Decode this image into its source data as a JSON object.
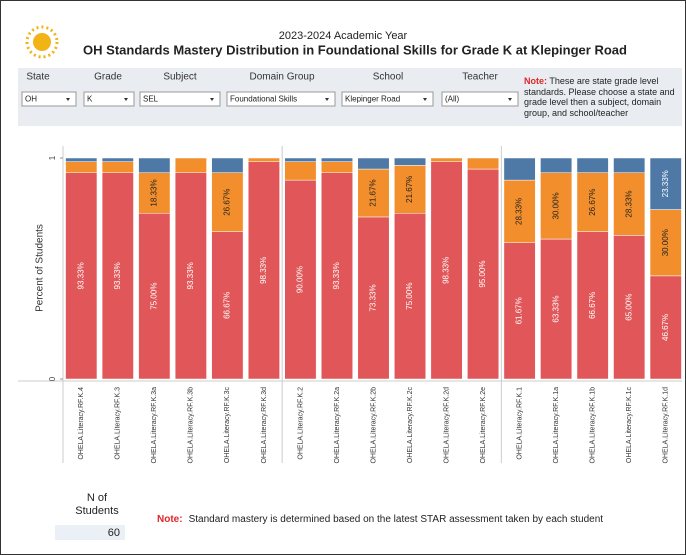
{
  "header": {
    "subtitle": "2023-2024 Academic Year",
    "title": "OH Standards Mastery Distribution in Foundational Skills for Grade K at Klepinger Road"
  },
  "filters": [
    {
      "label": "State",
      "value": "OH"
    },
    {
      "label": "Grade",
      "value": "K"
    },
    {
      "label": "Subject",
      "value": "SEL"
    },
    {
      "label": "Domain Group",
      "value": "Foundational Skills"
    },
    {
      "label": "School",
      "value": "Klepinger Road"
    },
    {
      "label": "Teacher",
      "value": "(All)"
    }
  ],
  "filter_note": {
    "prefix": "Note:",
    "text": "These are state grade level standards. Please choose a state and grade level then a subject, domain group, and school/teacher"
  },
  "chart_data": {
    "type": "stacked_bar",
    "y_label": "Percent of Students",
    "ylim": [
      0,
      1
    ],
    "yticks": [
      0,
      1
    ],
    "categories": [
      "OHELA.Literacy.RF.K.4",
      "OHELA.Literacy.RF.K.3",
      "OHELA.Literacy.RF.K.3a",
      "OHELA.Literacy.RF.K.3b",
      "OHELA.Literacy.RF.K.3c",
      "OHELA.Literacy.RF.K.3d",
      "OHELA.Literacy.RF.K.2",
      "OHELA.Literacy.RF.K.2a",
      "OHELA.Literacy.RF.K.2b",
      "OHELA.Literacy.RF.K.2c",
      "OHELA.Literacy.RF.K.2d",
      "OHELA.Literacy.RF.K.2e",
      "OHELA.Literacy.RF.K.1",
      "OHELA.Literacy.RF.K.1a",
      "OHELA.Literacy.RF.K.1b",
      "OHELA.Literacy.RF.K.1c",
      "OHELA.Literacy.RF.K.1d"
    ],
    "series": [
      {
        "color": "#e15759",
        "values": [
          0.9333,
          0.9333,
          0.75,
          0.9333,
          0.6667,
          0.9833,
          0.9,
          0.9333,
          0.7333,
          0.75,
          0.9833,
          0.95,
          0.6167,
          0.6333,
          0.6667,
          0.65,
          0.4667
        ],
        "value_labels": [
          "93.33%",
          "93.33%",
          "75.00%",
          "93.33%",
          "66.67%",
          "98.33%",
          "90.00%",
          "93.33%",
          "73.33%",
          "75.00%",
          "98.33%",
          "95.00%",
          "61.67%",
          "63.33%",
          "66.67%",
          "65.00%",
          "46.67%"
        ]
      },
      {
        "color": "#f28e2b",
        "values": [
          0.05,
          0.05,
          0.1833,
          0.0667,
          0.2667,
          0.0167,
          0.0833,
          0.05,
          0.2167,
          0.2167,
          0.0167,
          0.05,
          0.2833,
          0.3,
          0.2667,
          0.2833,
          0.3
        ],
        "value_labels": [
          null,
          null,
          "18.33%",
          null,
          "26.67%",
          null,
          null,
          null,
          "21.67%",
          "21.67%",
          null,
          null,
          "28.33%",
          "30.00%",
          "26.67%",
          "28.33%",
          "30.00%"
        ]
      },
      {
        "color": "#4e79a7",
        "values": [
          0.0167,
          0.0167,
          0.0667,
          0,
          0.0667,
          0,
          0.0167,
          0.0167,
          0.05,
          0.0333,
          0,
          0,
          0.1,
          0.0667,
          0.0667,
          0.0667,
          0.2333
        ],
        "value_labels": [
          null,
          null,
          null,
          null,
          null,
          null,
          null,
          null,
          null,
          null,
          null,
          null,
          null,
          null,
          null,
          null,
          "23.33%"
        ]
      }
    ]
  },
  "footer": {
    "n_label": "N of Students",
    "n_value": 60,
    "note_prefix": "Note:",
    "note_text": "Standard mastery is determined based on the latest STAR assessment taken by each student"
  }
}
